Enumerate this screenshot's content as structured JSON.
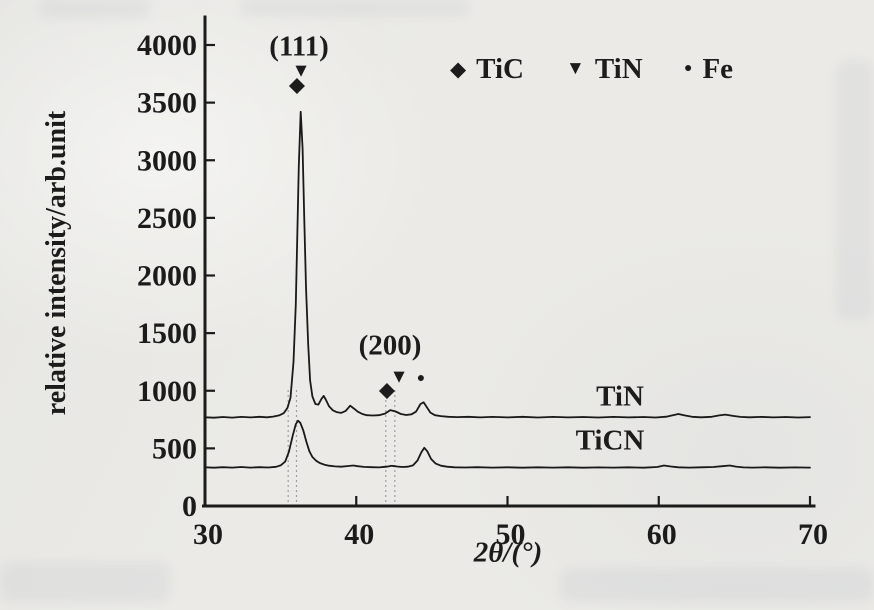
{
  "chart_data": {
    "type": "line",
    "title": "",
    "xlabel": "2θ/(°)",
    "ylabel": "relative intensity/arb.unit",
    "xlim": [
      30,
      70
    ],
    "ylim": [
      0,
      4000
    ],
    "xticks": [
      30,
      40,
      50,
      60,
      70
    ],
    "yticks": [
      0,
      500,
      1000,
      1500,
      2000,
      2500,
      3000,
      3500,
      4000
    ],
    "grid": false,
    "legend": {
      "position": "top-center",
      "entries": [
        {
          "marker": "diamond",
          "glyph": "◆",
          "label": "TiC"
        },
        {
          "marker": "triangle-down",
          "glyph": "▼",
          "label": "TiN"
        },
        {
          "marker": "circle",
          "glyph": "●",
          "label": "Fe"
        }
      ]
    },
    "annotations": {
      "peak111": {
        "text": "(111)",
        "two_theta": 36.3,
        "triangle_glyph": "▼",
        "diamond_glyph": "◆"
      },
      "peak200": {
        "text": "(200)",
        "two_theta": 42.3,
        "triangle_glyph": "▼",
        "diamond_glyph": "◆",
        "circle_glyph": "●"
      }
    },
    "reference_lines_2theta": [
      35.5,
      36.05,
      41.95,
      42.55
    ],
    "peaks_summary": {
      "TiN_curve": [
        {
          "two_theta": 36.33,
          "intensity": 3420,
          "assignment": "TiC/TiN (111)"
        },
        {
          "two_theta": 37.85,
          "intensity": 955
        },
        {
          "two_theta": 39.6,
          "intensity": 870
        },
        {
          "two_theta": 42.25,
          "intensity": 832,
          "assignment": "TiC/TiN (200)"
        },
        {
          "two_theta": 44.45,
          "intensity": 900,
          "assignment": "Fe"
        }
      ],
      "TiCN_curve": [
        {
          "two_theta": 36.15,
          "intensity": 740,
          "assignment": "(111)"
        },
        {
          "two_theta": 44.5,
          "intensity": 505,
          "assignment": "Fe"
        }
      ]
    },
    "series": [
      {
        "name": "TiN",
        "baseline": 770,
        "points": [
          [
            30,
            770
          ],
          [
            30.6,
            766
          ],
          [
            31.2,
            772
          ],
          [
            31.8,
            767
          ],
          [
            32.4,
            773
          ],
          [
            33,
            769
          ],
          [
            33.6,
            774
          ],
          [
            34.1,
            770
          ],
          [
            34.5,
            776
          ],
          [
            34.9,
            786
          ],
          [
            35.2,
            805
          ],
          [
            35.45,
            850
          ],
          [
            35.65,
            940
          ],
          [
            35.85,
            1250
          ],
          [
            36,
            1750
          ],
          [
            36.1,
            2350
          ],
          [
            36.2,
            2950
          ],
          [
            36.33,
            3420
          ],
          [
            36.45,
            3100
          ],
          [
            36.55,
            2550
          ],
          [
            36.68,
            1900
          ],
          [
            36.82,
            1400
          ],
          [
            36.95,
            1090
          ],
          [
            37.1,
            950
          ],
          [
            37.3,
            885
          ],
          [
            37.5,
            880
          ],
          [
            37.7,
            930
          ],
          [
            37.85,
            955
          ],
          [
            38,
            920
          ],
          [
            38.2,
            865
          ],
          [
            38.45,
            830
          ],
          [
            38.7,
            815
          ],
          [
            39,
            808
          ],
          [
            39.3,
            825
          ],
          [
            39.6,
            870
          ],
          [
            39.85,
            845
          ],
          [
            40.1,
            818
          ],
          [
            40.4,
            798
          ],
          [
            40.7,
            788
          ],
          [
            41.1,
            785
          ],
          [
            41.5,
            788
          ],
          [
            41.9,
            802
          ],
          [
            42.25,
            832
          ],
          [
            42.6,
            820
          ],
          [
            42.95,
            798
          ],
          [
            43.3,
            790
          ],
          [
            43.65,
            796
          ],
          [
            43.95,
            818
          ],
          [
            44.25,
            885
          ],
          [
            44.45,
            900
          ],
          [
            44.65,
            860
          ],
          [
            44.9,
            810
          ],
          [
            45.2,
            788
          ],
          [
            45.6,
            780
          ],
          [
            46.1,
            774
          ],
          [
            46.7,
            771
          ],
          [
            47.4,
            774
          ],
          [
            48.2,
            769
          ],
          [
            49,
            773
          ],
          [
            50,
            769
          ],
          [
            51,
            774
          ],
          [
            52,
            768
          ],
          [
            53,
            773
          ],
          [
            54,
            769
          ],
          [
            55,
            772
          ],
          [
            56,
            768
          ],
          [
            57,
            773
          ],
          [
            58,
            769
          ],
          [
            59,
            772
          ],
          [
            59.8,
            768
          ],
          [
            60.5,
            775
          ],
          [
            61,
            790
          ],
          [
            61.3,
            798
          ],
          [
            61.7,
            786
          ],
          [
            62.2,
            774
          ],
          [
            62.8,
            770
          ],
          [
            63.5,
            774
          ],
          [
            64,
            786
          ],
          [
            64.4,
            793
          ],
          [
            64.9,
            782
          ],
          [
            65.4,
            773
          ],
          [
            66,
            770
          ],
          [
            66.8,
            773
          ],
          [
            67.6,
            769
          ],
          [
            68.4,
            772
          ],
          [
            69.2,
            768
          ],
          [
            70,
            771
          ]
        ]
      },
      {
        "name": "TiCN",
        "baseline": 330,
        "points": [
          [
            30,
            336
          ],
          [
            30.6,
            332
          ],
          [
            31.2,
            337
          ],
          [
            31.8,
            333
          ],
          [
            32.4,
            338
          ],
          [
            33,
            333
          ],
          [
            33.6,
            337
          ],
          [
            34.2,
            334
          ],
          [
            34.7,
            340
          ],
          [
            35,
            352
          ],
          [
            35.3,
            385
          ],
          [
            35.55,
            470
          ],
          [
            35.8,
            610
          ],
          [
            36,
            710
          ],
          [
            36.15,
            740
          ],
          [
            36.3,
            722
          ],
          [
            36.5,
            655
          ],
          [
            36.7,
            560
          ],
          [
            36.9,
            475
          ],
          [
            37.1,
            425
          ],
          [
            37.35,
            392
          ],
          [
            37.6,
            372
          ],
          [
            37.9,
            358
          ],
          [
            38.2,
            350
          ],
          [
            38.6,
            344
          ],
          [
            39,
            341
          ],
          [
            39.4,
            346
          ],
          [
            39.8,
            351
          ],
          [
            40.1,
            345
          ],
          [
            40.5,
            339
          ],
          [
            41,
            337
          ],
          [
            41.5,
            335
          ],
          [
            42,
            341
          ],
          [
            42.35,
            349
          ],
          [
            42.7,
            343
          ],
          [
            43.05,
            338
          ],
          [
            43.4,
            341
          ],
          [
            43.75,
            352
          ],
          [
            44.05,
            395
          ],
          [
            44.3,
            465
          ],
          [
            44.5,
            505
          ],
          [
            44.7,
            475
          ],
          [
            44.95,
            408
          ],
          [
            45.25,
            368
          ],
          [
            45.6,
            350
          ],
          [
            46,
            341
          ],
          [
            46.5,
            336
          ],
          [
            47.2,
            334
          ],
          [
            48,
            337
          ],
          [
            49,
            333
          ],
          [
            50,
            336
          ],
          [
            51,
            332
          ],
          [
            52,
            336
          ],
          [
            53,
            333
          ],
          [
            54,
            336
          ],
          [
            55,
            332
          ],
          [
            56,
            335
          ],
          [
            57,
            333
          ],
          [
            58,
            336
          ],
          [
            59,
            332
          ],
          [
            59.9,
            338
          ],
          [
            60.35,
            351
          ],
          [
            60.8,
            343
          ],
          [
            61.3,
            336
          ],
          [
            62,
            333
          ],
          [
            62.8,
            336
          ],
          [
            63.6,
            338
          ],
          [
            64.2,
            345
          ],
          [
            64.7,
            351
          ],
          [
            65.1,
            342
          ],
          [
            65.6,
            335
          ],
          [
            66.2,
            333
          ],
          [
            67,
            336
          ],
          [
            68,
            332
          ],
          [
            69,
            335
          ],
          [
            70,
            333
          ]
        ]
      }
    ]
  }
}
